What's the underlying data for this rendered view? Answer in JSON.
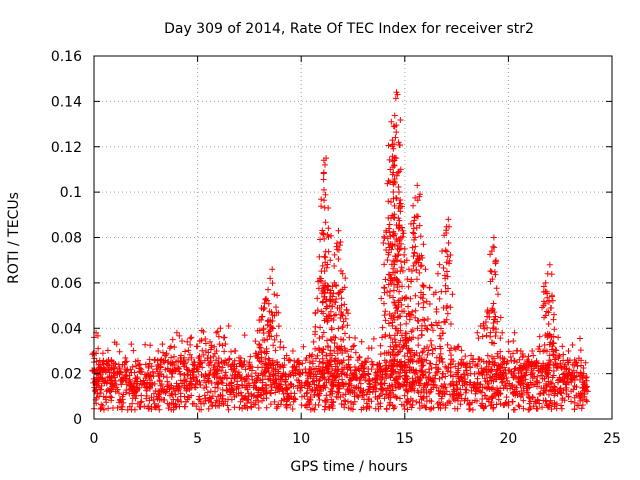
{
  "chart_data": {
    "type": "scatter",
    "title": "Day 309 of 2014, Rate Of TEC Index for receiver str2",
    "xlabel": "GPS time / hours",
    "ylabel": "ROTI / TECUs",
    "xlim": [
      0,
      25
    ],
    "ylim": [
      0,
      0.16
    ],
    "x_ticks": [
      0,
      5,
      10,
      15,
      20,
      25
    ],
    "x_tick_labels": [
      "0",
      "5",
      "10",
      "15",
      "20",
      "25"
    ],
    "y_ticks": [
      0,
      0.02,
      0.04,
      0.06,
      0.08,
      0.1,
      0.12,
      0.14,
      0.16
    ],
    "y_tick_labels": [
      "0",
      "0.02",
      "0.04",
      "0.06",
      "0.08",
      "0.1",
      "0.12",
      "0.14",
      "0.16"
    ],
    "grid": true,
    "marker": "+",
    "color": "#ff0000",
    "series": [
      {
        "name": "ROTI",
        "points": [
          [
            0.0,
            0.036
          ],
          [
            0.1,
            0.038
          ],
          [
            0.1,
            0.029
          ],
          [
            0.2,
            0.031
          ],
          [
            0.3,
            0.024
          ],
          [
            0.5,
            0.022
          ],
          [
            0.7,
            0.026
          ],
          [
            1.0,
            0.02
          ],
          [
            1.2,
            0.024
          ],
          [
            1.5,
            0.022
          ],
          [
            1.8,
            0.033
          ],
          [
            2.0,
            0.018
          ],
          [
            2.2,
            0.021
          ],
          [
            2.5,
            0.024
          ],
          [
            2.8,
            0.016
          ],
          [
            3.1,
            0.03
          ],
          [
            3.3,
            0.033
          ],
          [
            3.5,
            0.029
          ],
          [
            3.8,
            0.035
          ],
          [
            4.0,
            0.038
          ],
          [
            4.2,
            0.028
          ],
          [
            4.5,
            0.034
          ],
          [
            4.7,
            0.036
          ],
          [
            5.0,
            0.032
          ],
          [
            5.2,
            0.039
          ],
          [
            5.4,
            0.03
          ],
          [
            5.6,
            0.034
          ],
          [
            5.9,
            0.038
          ],
          [
            6.1,
            0.04
          ],
          [
            6.3,
            0.036
          ],
          [
            6.5,
            0.041
          ],
          [
            6.8,
            0.03
          ],
          [
            7.0,
            0.027
          ],
          [
            7.2,
            0.024
          ],
          [
            7.5,
            0.025
          ],
          [
            7.8,
            0.029
          ],
          [
            8.0,
            0.039
          ],
          [
            8.1,
            0.045
          ],
          [
            8.2,
            0.049
          ],
          [
            8.3,
            0.053
          ],
          [
            8.4,
            0.057
          ],
          [
            8.5,
            0.062
          ],
          [
            8.6,
            0.066
          ],
          [
            8.7,
            0.055
          ],
          [
            8.8,
            0.047
          ],
          [
            9.0,
            0.034
          ],
          [
            9.3,
            0.028
          ],
          [
            9.6,
            0.03
          ],
          [
            9.9,
            0.024
          ],
          [
            10.2,
            0.022
          ],
          [
            10.4,
            0.028
          ],
          [
            10.6,
            0.034
          ],
          [
            10.8,
            0.048
          ],
          [
            10.9,
            0.062
          ],
          [
            11.0,
            0.082
          ],
          [
            11.1,
            0.101
          ],
          [
            11.15,
            0.112
          ],
          [
            11.2,
            0.115
          ],
          [
            11.3,
            0.093
          ],
          [
            11.4,
            0.07
          ],
          [
            11.5,
            0.054
          ],
          [
            11.6,
            0.06
          ],
          [
            11.7,
            0.076
          ],
          [
            11.8,
            0.083
          ],
          [
            11.9,
            0.078
          ],
          [
            12.0,
            0.064
          ],
          [
            12.1,
            0.058
          ],
          [
            12.2,
            0.048
          ],
          [
            12.5,
            0.032
          ],
          [
            12.8,
            0.027
          ],
          [
            13.1,
            0.025
          ],
          [
            13.4,
            0.022
          ],
          [
            13.7,
            0.024
          ],
          [
            13.9,
            0.036
          ],
          [
            14.0,
            0.058
          ],
          [
            14.1,
            0.083
          ],
          [
            14.2,
            0.096
          ],
          [
            14.3,
            0.11
          ],
          [
            14.35,
            0.131
          ],
          [
            14.4,
            0.121
          ],
          [
            14.5,
            0.115
          ],
          [
            14.55,
            0.124
          ],
          [
            14.6,
            0.144
          ],
          [
            14.65,
            0.143
          ],
          [
            14.7,
            0.122
          ],
          [
            14.8,
            0.095
          ],
          [
            14.9,
            0.083
          ],
          [
            15.0,
            0.075
          ],
          [
            15.1,
            0.07
          ],
          [
            15.2,
            0.066
          ],
          [
            15.3,
            0.086
          ],
          [
            15.4,
            0.094
          ],
          [
            15.5,
            0.08
          ],
          [
            15.6,
            0.103
          ],
          [
            15.7,
            0.098
          ],
          [
            15.8,
            0.072
          ],
          [
            15.9,
            0.077
          ],
          [
            16.0,
            0.066
          ],
          [
            16.2,
            0.058
          ],
          [
            16.4,
            0.055
          ],
          [
            16.6,
            0.064
          ],
          [
            16.8,
            0.074
          ],
          [
            17.0,
            0.082
          ],
          [
            17.1,
            0.088
          ],
          [
            17.3,
            0.055
          ],
          [
            17.6,
            0.032
          ],
          [
            17.9,
            0.024
          ],
          [
            18.2,
            0.028
          ],
          [
            18.5,
            0.038
          ],
          [
            18.8,
            0.042
          ],
          [
            19.0,
            0.048
          ],
          [
            19.2,
            0.074
          ],
          [
            19.3,
            0.08
          ],
          [
            19.4,
            0.07
          ],
          [
            19.5,
            0.055
          ],
          [
            19.7,
            0.038
          ],
          [
            20.0,
            0.034
          ],
          [
            20.3,
            0.038
          ],
          [
            20.6,
            0.03
          ],
          [
            20.9,
            0.026
          ],
          [
            21.2,
            0.028
          ],
          [
            21.5,
            0.032
          ],
          [
            21.7,
            0.05
          ],
          [
            21.8,
            0.06
          ],
          [
            21.9,
            0.064
          ],
          [
            22.0,
            0.068
          ],
          [
            22.1,
            0.054
          ],
          [
            22.2,
            0.046
          ],
          [
            22.4,
            0.036
          ],
          [
            22.6,
            0.032
          ],
          [
            22.9,
            0.03
          ],
          [
            23.2,
            0.026
          ],
          [
            23.5,
            0.02
          ],
          [
            23.7,
            0.015
          ]
        ]
      }
    ]
  }
}
